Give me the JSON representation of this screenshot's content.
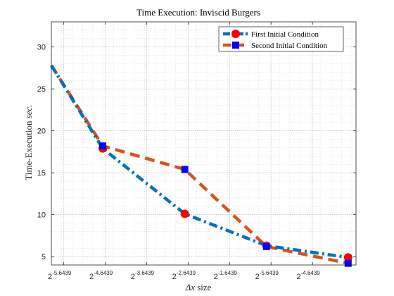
{
  "chart_data": {
    "type": "line",
    "title": "Time Execution: Inviscid Burgers",
    "xlabel_math": "Δx",
    "xlabel_rest": " size",
    "ylabel_main": "Time-Execution ",
    "ylabel_unit": "sec.",
    "x_ticks": [
      {
        "base": "2",
        "exp": "-5.6439"
      },
      {
        "base": "2",
        "exp": "-4.6439"
      },
      {
        "base": "2",
        "exp": "-3.6439"
      },
      {
        "base": "2",
        "exp": "-2.6439"
      },
      {
        "base": "2",
        "exp": "-1.6439"
      },
      {
        "base": "2",
        "exp": "-5.6439"
      },
      {
        "base": "2",
        "exp": "-4.6439"
      }
    ],
    "y_ticks": [
      "5",
      "10",
      "15",
      "20",
      "25",
      "30"
    ],
    "ylim": [
      4,
      33
    ],
    "xlim": [
      0,
      7.35
    ],
    "grid": true,
    "minor_grid": true,
    "legend_position": "top-right",
    "series": [
      {
        "name": "First Initial Condition",
        "color": "#0072BD",
        "line_style": "dash-dot",
        "marker": "circle",
        "marker_color": "#ff0000",
        "x": [
          0.0,
          1.24,
          3.22,
          5.19,
          7.16
        ],
        "y": [
          27.8,
          17.9,
          10.1,
          6.3,
          4.9
        ]
      },
      {
        "name": "Second Initial Condition",
        "color": "#D95319",
        "line_style": "dash",
        "marker": "square",
        "marker_color": "#0000ff",
        "x": [
          0.0,
          1.24,
          3.22,
          5.19,
          7.16
        ],
        "y": [
          27.8,
          18.2,
          15.4,
          6.2,
          4.2
        ]
      }
    ]
  }
}
